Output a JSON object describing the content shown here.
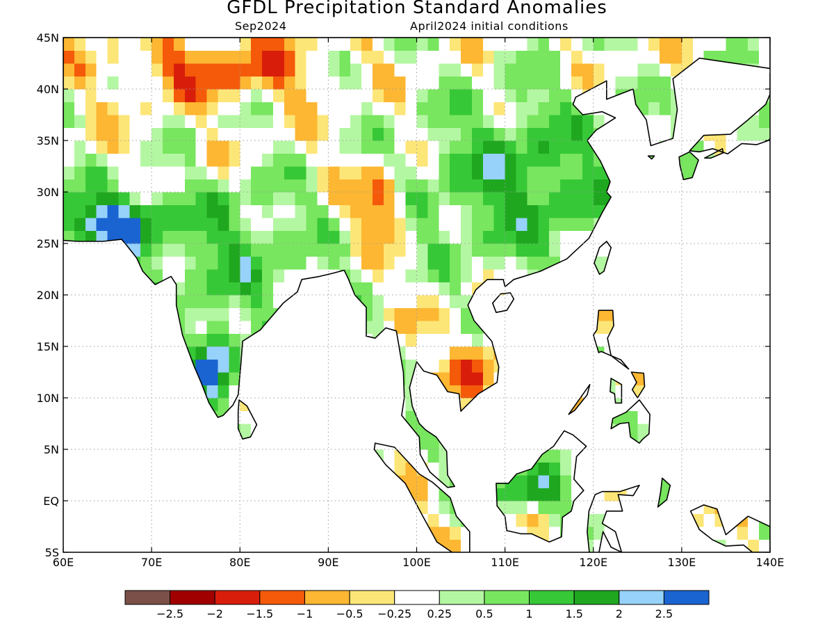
{
  "title": "GFDL Precipitation Standard Anomalies",
  "subtitle_left": "Sep2024",
  "subtitle_right": "April2024 initial conditions",
  "map": {
    "lon_range": [
      60,
      140
    ],
    "lat_range": [
      -5,
      45
    ],
    "lon_ticks": [
      {
        "v": 60,
        "label": "60E"
      },
      {
        "v": 70,
        "label": "70E"
      },
      {
        "v": 80,
        "label": "80E"
      },
      {
        "v": 90,
        "label": "90E"
      },
      {
        "v": 100,
        "label": "100E"
      },
      {
        "v": 110,
        "label": "110E"
      },
      {
        "v": 120,
        "label": "120E"
      },
      {
        "v": 130,
        "label": "130E"
      },
      {
        "v": 140,
        "label": "140E"
      }
    ],
    "lat_ticks": [
      {
        "v": 45,
        "label": "45N"
      },
      {
        "v": 40,
        "label": "40N"
      },
      {
        "v": 35,
        "label": "35N"
      },
      {
        "v": 30,
        "label": "30N"
      },
      {
        "v": 25,
        "label": "25N"
      },
      {
        "v": 20,
        "label": "20N"
      },
      {
        "v": 15,
        "label": "15N"
      },
      {
        "v": 10,
        "label": "10N"
      },
      {
        "v": 5,
        "label": "5N"
      },
      {
        "v": 0,
        "label": "EQ"
      },
      {
        "v": -5,
        "label": "5S"
      }
    ],
    "grid_lines": "dotted"
  },
  "colorbar": {
    "colors": [
      "#7a5048",
      "#a00000",
      "#d81e0a",
      "#f45a0a",
      "#fdb732",
      "#fde678",
      "#ffffff",
      "#b4f7a2",
      "#78e65f",
      "#37c837",
      "#1fa81f",
      "#96d2fa",
      "#1a64d2"
    ],
    "labels": [
      "−2.5",
      "−2",
      "−1.5",
      "−1",
      "−0.5",
      "−0.25",
      "0.25",
      "0.5",
      "1",
      "1.5",
      "2",
      "2.5"
    ]
  },
  "anomaly_regions": [
    {
      "name": "china-wet",
      "lon": 112,
      "lat": 31,
      "rx": 12,
      "ry": 8,
      "c": 1.5
    },
    {
      "name": "india-wet",
      "lon": 79,
      "lat": 24,
      "rx": 9,
      "ry": 7,
      "c": 1.2
    },
    {
      "name": "sw-india-very-wet",
      "lon": 77,
      "lat": 13,
      "rx": 2.5,
      "ry": 3.5,
      "c": 2.7
    },
    {
      "name": "pakistan-very-wet",
      "lon": 65,
      "lat": 27,
      "rx": 6,
      "ry": 3,
      "c": 2.7
    },
    {
      "name": "mongolia-dry",
      "lon": 78,
      "lat": 42,
      "rx": 10,
      "ry": 3,
      "c": -1.3
    },
    {
      "name": "tibet-dry",
      "lon": 96,
      "lat": 29,
      "rx": 3,
      "ry": 3,
      "c": -1.6
    },
    {
      "name": "cambodia-dry",
      "lon": 107,
      "lat": 13,
      "rx": 3,
      "ry": 3,
      "c": -1.3
    },
    {
      "name": "borneo-wet",
      "lon": 113,
      "lat": 1,
      "rx": 4,
      "ry": 2,
      "c": 2.2
    }
  ]
}
